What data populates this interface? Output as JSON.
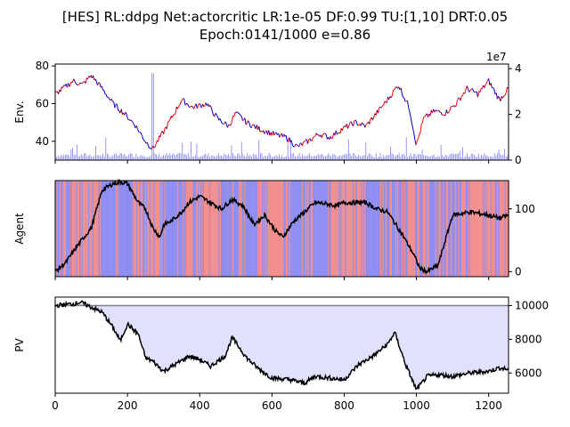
{
  "title_line1": "[HES] RL:ddpg Net:actorcritic LR:1e-05 DF:0.99 TU:[1,10] DRT:0.05",
  "title_line2": "Epoch:0141/1000 e=0.86",
  "colors": {
    "price_up": "#ff0000",
    "price_down": "#0000cc",
    "volume": "#8080f0",
    "agent_long": "#f08080",
    "agent_short": "#8080f0",
    "agent_line": "#000000",
    "pv_line": "#000000",
    "pv_fill": "#e0e0ff",
    "pv_baseline": "#808080"
  },
  "chart_data": [
    {
      "type": "line",
      "panel": "env",
      "ylabel": "Env.",
      "right_axis_multiplier": "1e7",
      "x_range": [
        0,
        1255
      ],
      "ylim": [
        30,
        81
      ],
      "yticks": [
        40,
        60,
        80
      ],
      "right_ylim": [
        0,
        42000000
      ],
      "right_yticks": [
        0,
        2,
        4
      ],
      "x": [
        0,
        50,
        75,
        100,
        130,
        160,
        190,
        220,
        250,
        270,
        300,
        330,
        350,
        380,
        420,
        450,
        480,
        500,
        530,
        560,
        600,
        640,
        670,
        700,
        730,
        760,
        790,
        830,
        860,
        890,
        920,
        950,
        980,
        1000,
        1020,
        1050,
        1080,
        1110,
        1140,
        1170,
        1200,
        1230,
        1255
      ],
      "price": [
        65,
        72,
        70,
        75,
        68,
        60,
        55,
        49,
        40,
        36,
        45,
        55,
        62,
        58,
        60,
        52,
        48,
        55,
        50,
        47,
        44,
        42,
        37,
        40,
        44,
        42,
        46,
        50,
        48,
        55,
        62,
        70,
        58,
        38,
        52,
        56,
        55,
        60,
        68,
        65,
        72,
        62,
        68
      ],
      "volume_series": "Volume",
      "volume_scale_max": 40000000
    },
    {
      "type": "line",
      "panel": "agent",
      "ylabel": "Agent",
      "x_range": [
        0,
        1255
      ],
      "ylim": [
        -8,
        145
      ],
      "right_yticks": [
        0,
        100
      ],
      "x": [
        0,
        30,
        60,
        100,
        130,
        160,
        180,
        200,
        230,
        250,
        270,
        290,
        300,
        320,
        350,
        370,
        400,
        430,
        460,
        490,
        520,
        550,
        580,
        610,
        630,
        660,
        690,
        720,
        750,
        780,
        800,
        830,
        860,
        890,
        920,
        960,
        990,
        1010,
        1030,
        1060,
        1100,
        1150,
        1200,
        1230,
        1255
      ],
      "position": [
        0,
        15,
        40,
        70,
        130,
        140,
        143,
        140,
        110,
        100,
        70,
        55,
        75,
        80,
        95,
        110,
        120,
        110,
        100,
        115,
        105,
        75,
        90,
        65,
        55,
        80,
        95,
        110,
        108,
        105,
        110,
        110,
        110,
        100,
        95,
        60,
        30,
        5,
        0,
        10,
        90,
        95,
        90,
        85,
        90
      ],
      "shade_segments": [
        {
          "from": 0,
          "to": 40,
          "side": "short"
        },
        {
          "from": 40,
          "to": 120,
          "side": "long"
        },
        {
          "from": 120,
          "to": 200,
          "side": "short"
        },
        {
          "from": 200,
          "to": 290,
          "side": "long"
        },
        {
          "from": 290,
          "to": 360,
          "side": "short"
        },
        {
          "from": 360,
          "to": 460,
          "side": "long"
        },
        {
          "from": 460,
          "to": 560,
          "side": "short"
        },
        {
          "from": 560,
          "to": 650,
          "side": "long"
        },
        {
          "from": 650,
          "to": 760,
          "side": "short"
        },
        {
          "from": 760,
          "to": 860,
          "side": "long"
        },
        {
          "from": 860,
          "to": 960,
          "side": "short"
        },
        {
          "from": 960,
          "to": 1040,
          "side": "long"
        },
        {
          "from": 1040,
          "to": 1130,
          "side": "short"
        },
        {
          "from": 1130,
          "to": 1255,
          "side": "long"
        }
      ]
    },
    {
      "type": "area",
      "panel": "pv",
      "ylabel": "PV",
      "x_range": [
        0,
        1255
      ],
      "ylim": [
        4800,
        10500
      ],
      "right_yticks": [
        6000,
        8000,
        10000
      ],
      "xticks": [
        0,
        200,
        400,
        600,
        800,
        1000,
        1200
      ],
      "baseline": 10000,
      "x": [
        0,
        50,
        70,
        100,
        130,
        160,
        180,
        200,
        230,
        250,
        270,
        300,
        340,
        370,
        400,
        430,
        470,
        490,
        530,
        560,
        600,
        650,
        690,
        720,
        760,
        800,
        840,
        880,
        920,
        940,
        970,
        1000,
        1030,
        1060,
        1100,
        1150,
        1200,
        1230,
        1255
      ],
      "pv": [
        10000,
        10100,
        10200,
        9900,
        9600,
        8700,
        7900,
        8900,
        8300,
        6900,
        6700,
        6100,
        6600,
        7000,
        6800,
        6400,
        7000,
        8100,
        6900,
        6300,
        5700,
        5600,
        5400,
        5800,
        5700,
        5600,
        6500,
        7000,
        7700,
        8400,
        6500,
        5000,
        5800,
        5900,
        5800,
        6000,
        6100,
        6300,
        6200
      ]
    }
  ]
}
